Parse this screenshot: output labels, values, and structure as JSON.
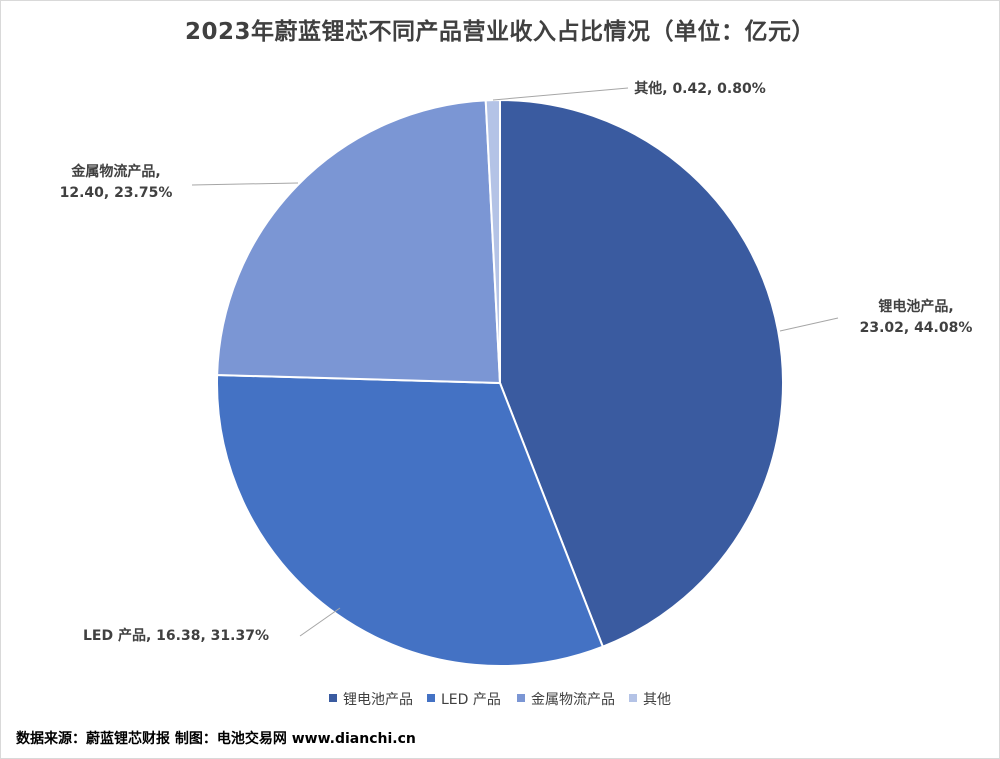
{
  "title": "2023年蔚蓝锂芯不同产品营业收入占比情况（单位：亿元）",
  "source_text": "数据来源：蔚蓝锂芯财报 制图：电池交易网 www.dianchi.cn",
  "chart_data": {
    "type": "pie",
    "title": "2023年蔚蓝锂芯不同产品营业收入占比情况（单位：亿元）",
    "legend_position": "bottom",
    "slices": [
      {
        "name": "锂电池产品",
        "value": 23.02,
        "percent": "44.08%",
        "color": "#3A5BA0",
        "label_lines": [
          "锂电池产品,",
          "23.02, 44.08%"
        ]
      },
      {
        "name": "LED 产品",
        "value": 16.38,
        "percent": "31.37%",
        "color": "#4472C4",
        "label_lines": [
          "LED 产品, 16.38, 31.37%"
        ]
      },
      {
        "name": "金属物流产品",
        "value": 12.4,
        "percent": "23.75%",
        "color": "#7B96D4",
        "label_lines": [
          "金属物流产品,",
          "12.40, 23.75%"
        ]
      },
      {
        "name": "其他",
        "value": 0.42,
        "percent": "0.80%",
        "color": "#B4C3E6",
        "label_lines": [
          "其他, 0.42, 0.80%"
        ]
      }
    ]
  }
}
